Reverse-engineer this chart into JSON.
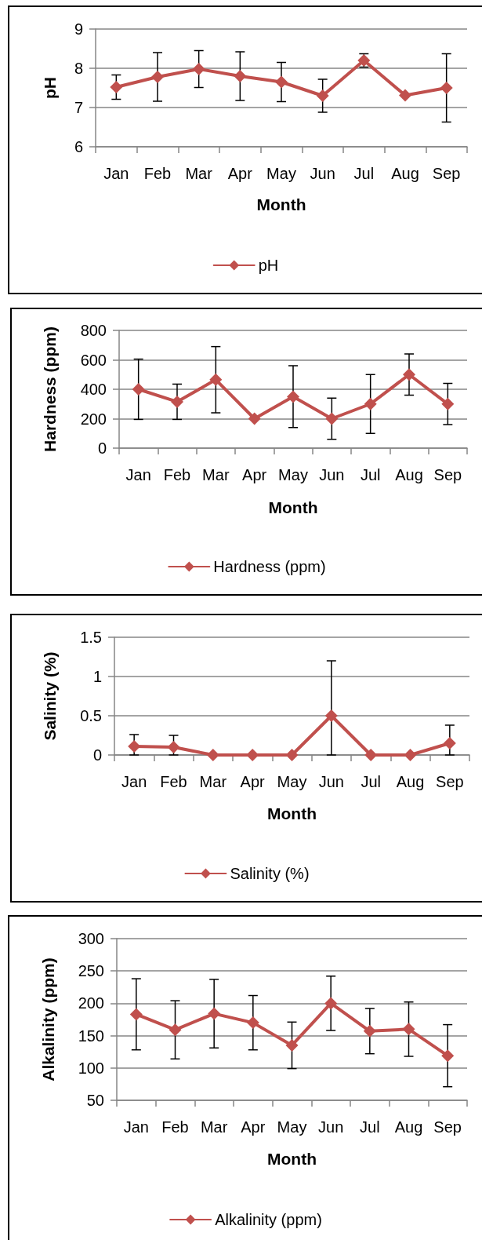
{
  "chart_data": [
    {
      "type": "line",
      "xlabel": "Month",
      "ylabel": "pH",
      "categories": [
        "Jan",
        "Feb",
        "Mar",
        "Apr",
        "May",
        "Jun",
        "Jul",
        "Aug",
        "Sep"
      ],
      "series": [
        {
          "name": "pH",
          "color": "#c0504d",
          "values": [
            7.52,
            7.78,
            7.98,
            7.8,
            7.65,
            7.3,
            8.2,
            7.31,
            7.5
          ],
          "errors": [
            0.31,
            0.62,
            0.47,
            0.62,
            0.5,
            0.42,
            0.17,
            null,
            0.87
          ]
        }
      ],
      "ylim": [
        6,
        9
      ],
      "yticks": [
        6,
        7,
        8,
        9
      ],
      "grid": "y",
      "legend": "bottom",
      "marker": "diamond",
      "line_style": "solid"
    },
    {
      "type": "line",
      "xlabel": "Month",
      "ylabel": "Hardness (ppm)",
      "categories": [
        "Jan",
        "Feb",
        "Mar",
        "Apr",
        "May",
        "Jun",
        "Jul",
        "Aug",
        "Sep"
      ],
      "series": [
        {
          "name": "Hardness (ppm)",
          "color": "#c0504d",
          "values": [
            400,
            315,
            465,
            200,
            350,
            200,
            300,
            500,
            300
          ],
          "errors": [
            205,
            120,
            225,
            null,
            210,
            140,
            200,
            140,
            140
          ]
        }
      ],
      "ylim": [
        0,
        800
      ],
      "yticks": [
        0,
        200,
        400,
        600,
        800
      ],
      "grid": "y",
      "legend": "bottom",
      "marker": "diamond",
      "line_style": "solid"
    },
    {
      "type": "line",
      "xlabel": "Month",
      "ylabel": "Salinity (%)",
      "categories": [
        "Jan",
        "Feb",
        "Mar",
        "Apr",
        "May",
        "Jun",
        "Jul",
        "Aug",
        "Sep"
      ],
      "series": [
        {
          "name": "Salinity (%)",
          "color": "#c0504d",
          "values": [
            0.11,
            0.1,
            0,
            0,
            0,
            0.5,
            0,
            0,
            0.15
          ],
          "errors": [
            [
              0,
              0.26
            ],
            [
              0,
              0.25
            ],
            null,
            null,
            null,
            [
              0,
              1.2
            ],
            null,
            null,
            [
              0,
              0.38
            ]
          ]
        }
      ],
      "ylim": [
        0,
        1.5
      ],
      "yticks": [
        0,
        0.5,
        1,
        1.5
      ],
      "grid": "y",
      "legend": "bottom",
      "marker": "diamond",
      "line_style": "solid"
    },
    {
      "type": "line",
      "xlabel": "Month",
      "ylabel": "Alkalinity (ppm)",
      "categories": [
        "Jan",
        "Feb",
        "Mar",
        "Apr",
        "May",
        "Jun",
        "Jul",
        "Aug",
        "Sep"
      ],
      "series": [
        {
          "name": "Alkalinity (ppm)",
          "color": "#c0504d",
          "values": [
            183,
            159,
            184,
            170,
            135,
            200,
            157,
            160,
            119
          ],
          "errors": [
            55,
            45,
            53,
            42,
            36,
            42,
            35,
            42,
            48
          ]
        }
      ],
      "ylim": [
        50,
        300
      ],
      "yticks": [
        50,
        100,
        150,
        200,
        250,
        300
      ],
      "grid": "y",
      "legend": "bottom",
      "marker": "diamond",
      "line_style": "solid"
    }
  ]
}
